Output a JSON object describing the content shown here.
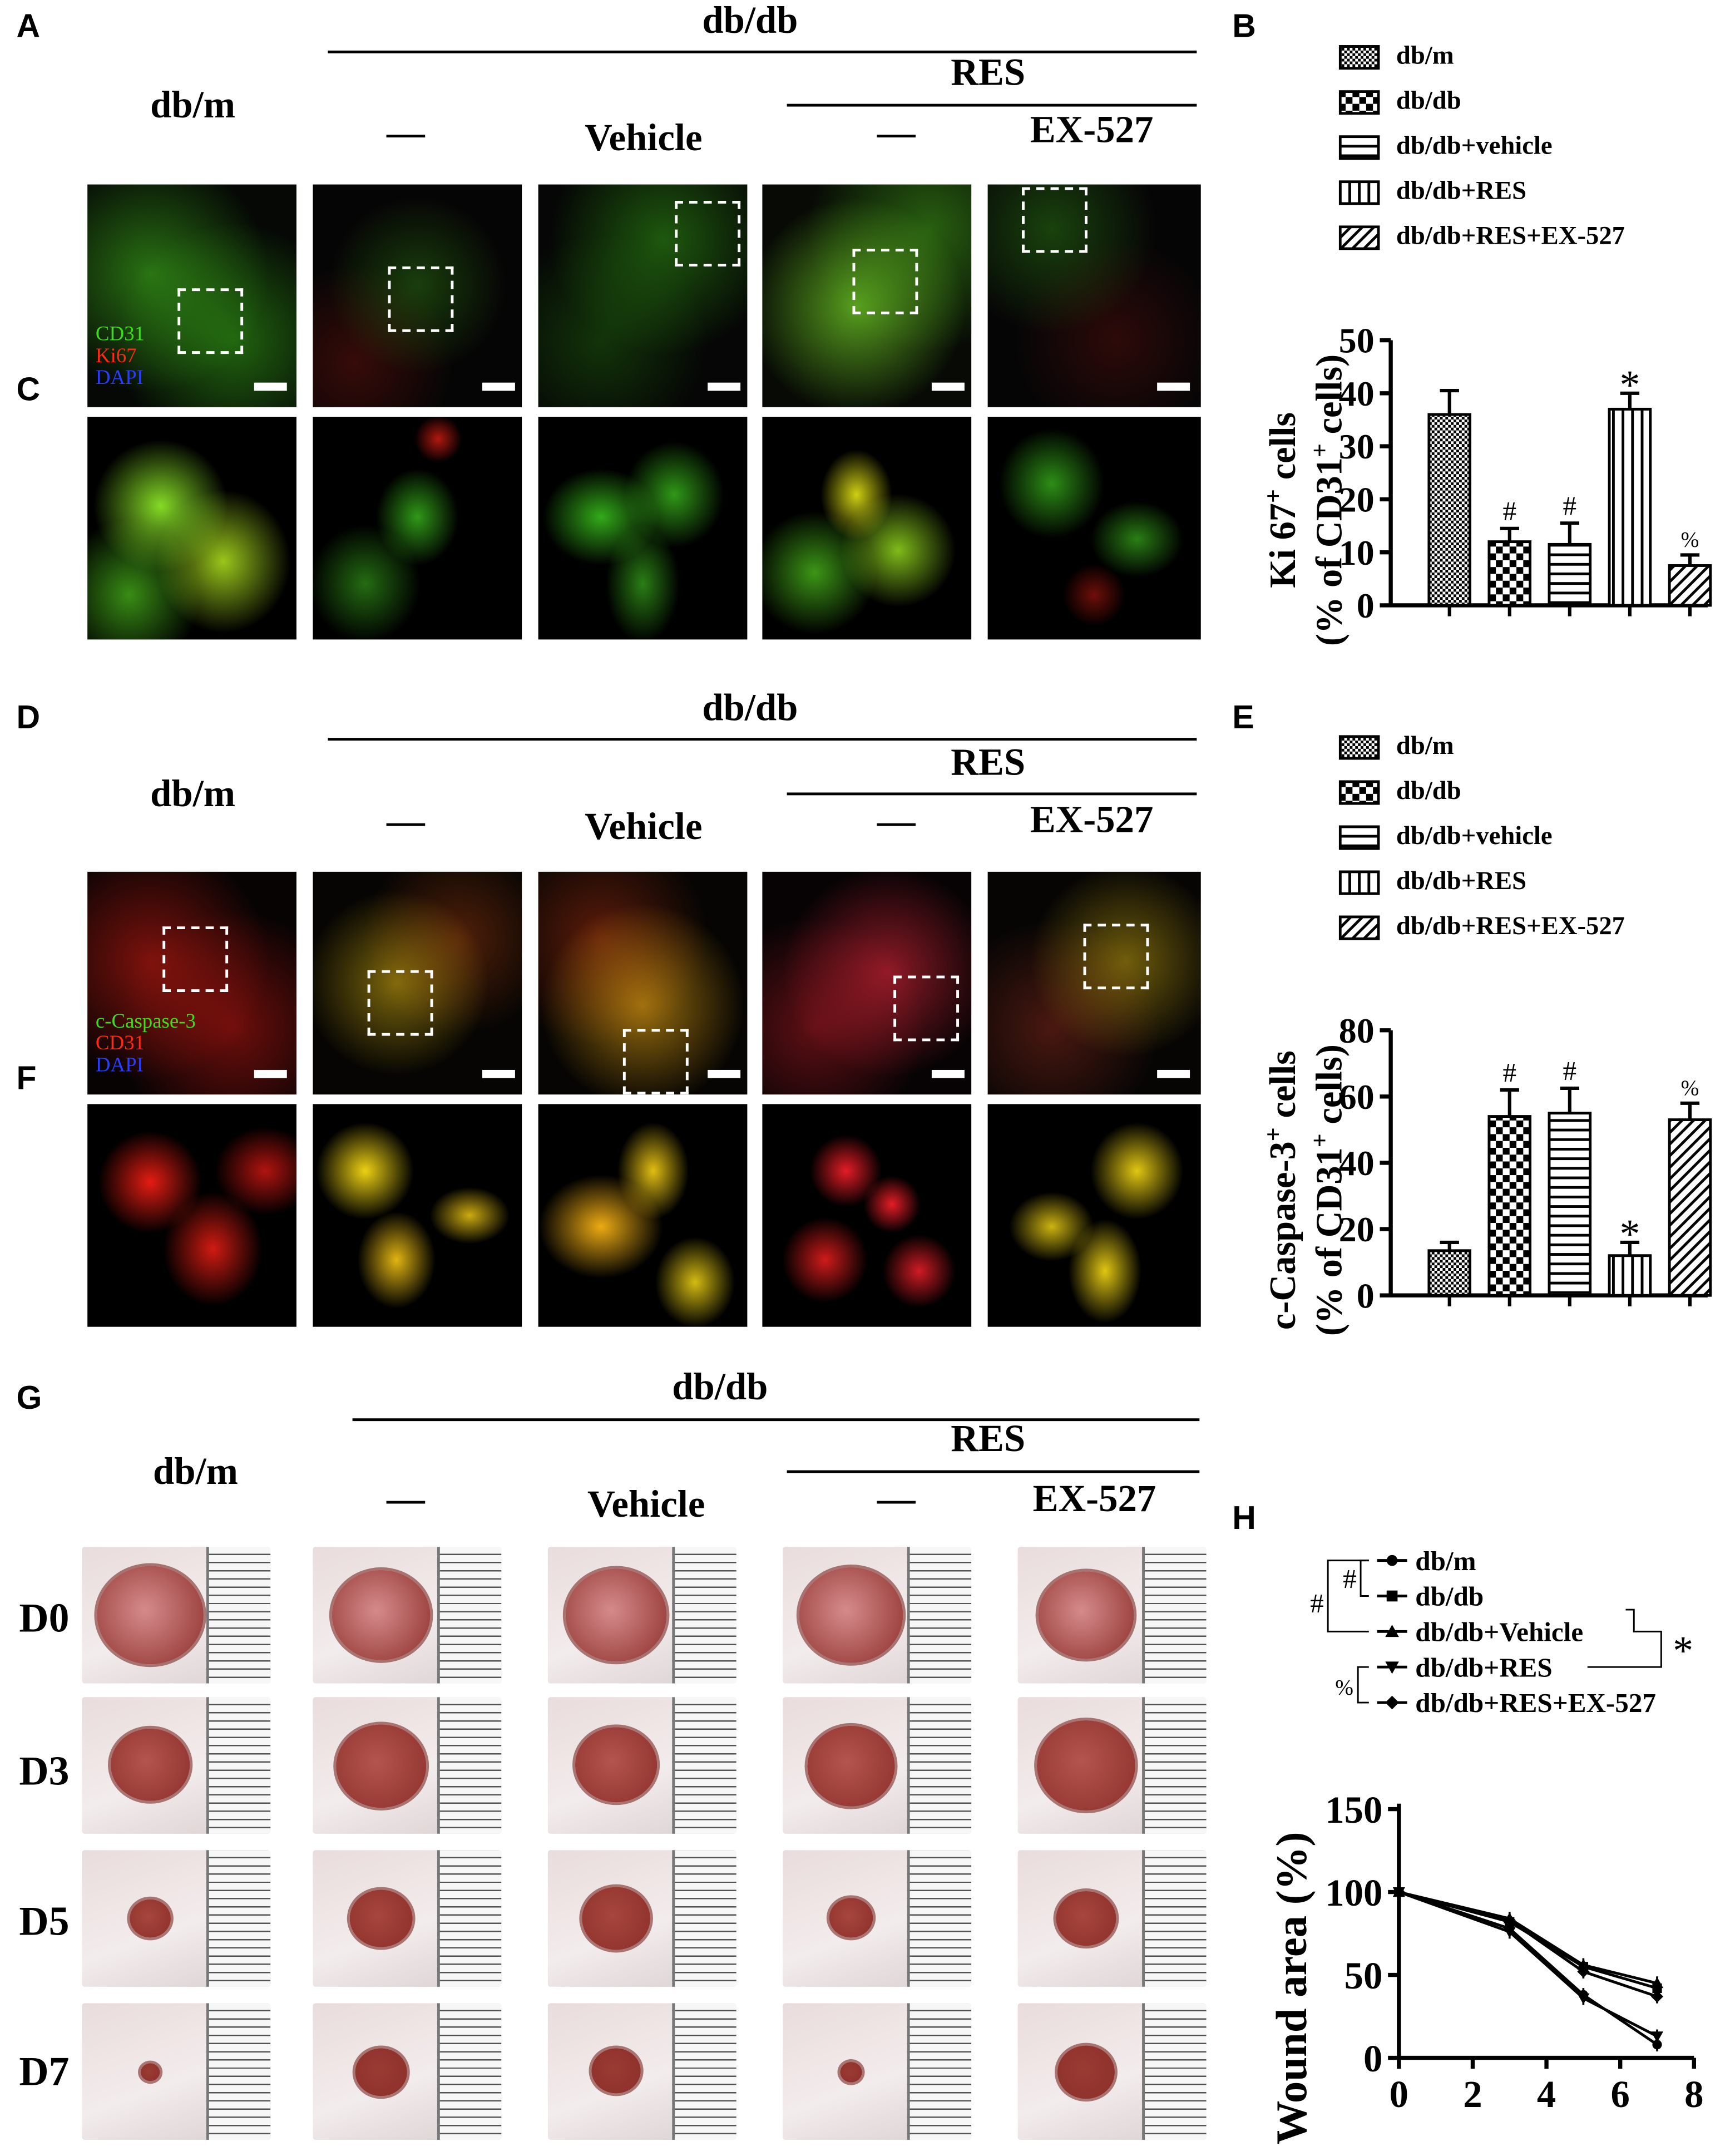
{
  "panel_labels": {
    "A": "A",
    "B": "B",
    "C": "C",
    "D": "D",
    "E": "E",
    "F": "F",
    "G": "G",
    "H": "H"
  },
  "headers": {
    "dbdb": "db/db",
    "res": "RES",
    "dbm": "db/m",
    "dash": "—",
    "vehicle": "Vehicle",
    "ex527": "EX-527"
  },
  "stains_ac": [
    "CD31",
    "Ki67",
    "DAPI"
  ],
  "stains_df": [
    "c-Caspase-3",
    "CD31",
    "DAPI"
  ],
  "days": [
    "D0",
    "D3",
    "D5",
    "D7"
  ],
  "legend_bars": [
    "db/m",
    "db/db",
    "db/db+vehicle",
    "db/db+RES",
    "db/db+RES+EX-527"
  ],
  "legend_h": [
    "db/m",
    "db/db",
    "db/db+Vehicle",
    "db/db+RES",
    "db/db+RES+EX-527"
  ],
  "sig_h": {
    "hash1": "#",
    "hash2": "#",
    "star": "*",
    "percent": "%"
  },
  "colors": {
    "green": "#3fdc1c",
    "red": "#ff2a14",
    "yellow": "#f2e30e",
    "blue": "#2a3cff"
  },
  "chart_data": [
    {
      "type": "bar",
      "ylabel_line1": "Ki 67",
      "ylabel_sup1": "+",
      "ylabel_line1_tail": " cells",
      "ylabel_line2": "(% of CD31",
      "ylabel_sup2": "+",
      "ylabel_line2_tail": " cells)",
      "ylim": [
        0,
        50
      ],
      "yticks": [
        "0",
        "10",
        "20",
        "30",
        "40",
        "50"
      ],
      "series": [
        {
          "name": "db/m",
          "value": 36,
          "error": 4.5,
          "sig": ""
        },
        {
          "name": "db/db",
          "value": 12,
          "error": 2.5,
          "sig": "#"
        },
        {
          "name": "db/db+vehicle",
          "value": 11.5,
          "error": 4,
          "sig": "#"
        },
        {
          "name": "db/db+RES",
          "value": 37,
          "error": 3,
          "sig": "*"
        },
        {
          "name": "db/db+RES+EX-527",
          "value": 7.5,
          "error": 2,
          "sig": "%"
        }
      ]
    },
    {
      "type": "bar",
      "ylabel_line1": "c-Caspase-3",
      "ylabel_sup1": "+",
      "ylabel_line1_tail": " cells",
      "ylabel_line2": "(% of CD31",
      "ylabel_sup2": "+",
      "ylabel_line2_tail": " cells)",
      "ylim": [
        0,
        80
      ],
      "yticks": [
        "0",
        "20",
        "40",
        "60",
        "80"
      ],
      "series": [
        {
          "name": "db/m",
          "value": 13.5,
          "error": 2.5,
          "sig": ""
        },
        {
          "name": "db/db",
          "value": 54,
          "error": 8,
          "sig": "#"
        },
        {
          "name": "db/db+vehicle",
          "value": 55,
          "error": 7.5,
          "sig": "#"
        },
        {
          "name": "db/db+RES",
          "value": 12,
          "error": 4,
          "sig": "*"
        },
        {
          "name": "db/db+RES+EX-527",
          "value": 53,
          "error": 5,
          "sig": "%"
        }
      ]
    },
    {
      "type": "line",
      "ylabel": "Wound area (%)",
      "ylim": [
        0,
        150
      ],
      "xlim": [
        0,
        8
      ],
      "yticks": [
        "0",
        "50",
        "100",
        "150"
      ],
      "xticks": [
        "0",
        "2",
        "4",
        "6",
        "8"
      ],
      "x": [
        0,
        3,
        5,
        7
      ],
      "series": [
        {
          "name": "db/m",
          "marker": "circle",
          "values": [
            100,
            78,
            38,
            8
          ]
        },
        {
          "name": "db/db",
          "marker": "square",
          "values": [
            100,
            82,
            55,
            42
          ]
        },
        {
          "name": "db/db+Vehicle",
          "marker": "triangle-up",
          "values": [
            100,
            84,
            56,
            45
          ]
        },
        {
          "name": "db/db+RES",
          "marker": "triangle-down",
          "values": [
            100,
            76,
            36,
            13
          ]
        },
        {
          "name": "db/db+RES+EX-527",
          "marker": "diamond",
          "values": [
            100,
            83,
            52,
            37
          ]
        }
      ]
    }
  ]
}
